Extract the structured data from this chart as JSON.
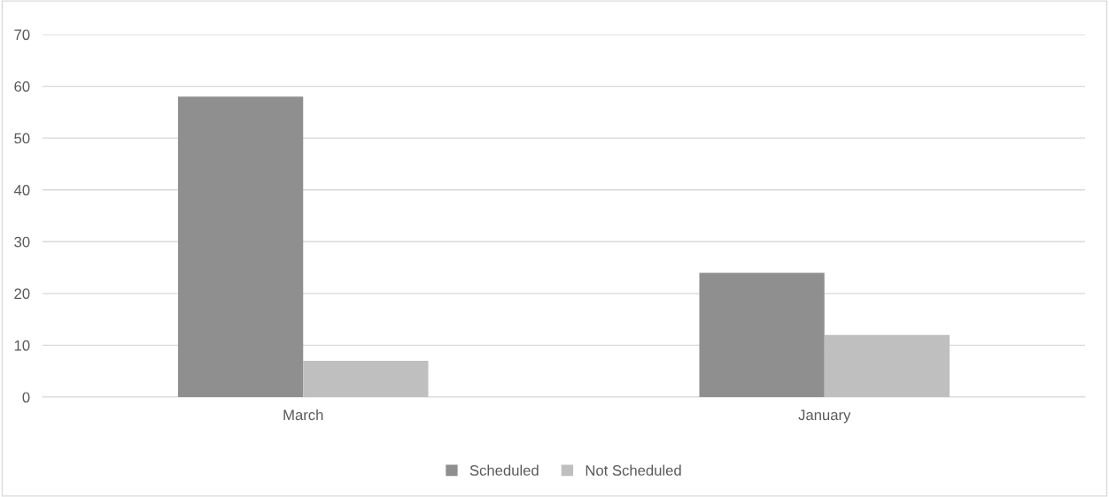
{
  "chart_data": {
    "type": "bar",
    "categories": [
      "March",
      "January"
    ],
    "series": [
      {
        "name": "Scheduled",
        "color": "#8f8f8f",
        "values": [
          58,
          24
        ]
      },
      {
        "name": "Not Scheduled",
        "color": "#bfbfbf",
        "values": [
          7,
          12
        ]
      }
    ],
    "ylim": [
      0,
      70
    ],
    "yticks": [
      0,
      10,
      20,
      30,
      40,
      50,
      60,
      70
    ],
    "grid": "y",
    "legend": "bottom"
  }
}
